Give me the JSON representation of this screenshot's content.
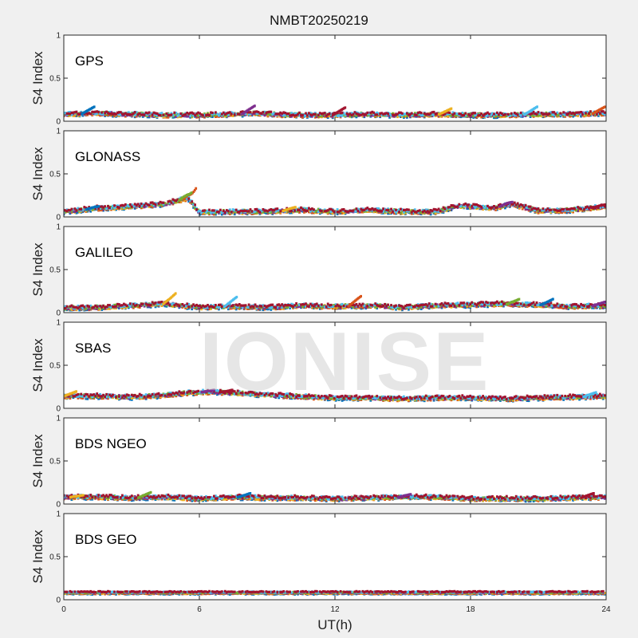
{
  "figure": {
    "title": "NMBT20250219",
    "watermark": "IONISE",
    "colors": {
      "background": "#f0f0f0",
      "axes_bg": "#ffffff",
      "axis": "#262626",
      "series": [
        "#0072bd",
        "#d95319",
        "#edb120",
        "#7e2f8e",
        "#77ac30",
        "#4dbeee",
        "#a2142f"
      ]
    }
  },
  "chart_data": [
    {
      "type": "scatter",
      "panel_label": "GPS",
      "ylabel": "S4 Index",
      "xlim": [
        0,
        24
      ],
      "ylim": [
        0,
        1
      ],
      "xticks": [
        0,
        6,
        12,
        18,
        24
      ],
      "yticks": [
        0,
        0.5,
        1
      ],
      "yticklabels": [
        "0",
        "0.5",
        "1"
      ],
      "show_xticklabels": false,
      "profile": {
        "x": [
          0,
          1.5,
          3,
          4.5,
          6,
          7.5,
          8.5,
          10,
          12,
          13.5,
          15,
          16.5,
          18,
          19.5,
          21,
          22.5,
          24
        ],
        "y": [
          0.08,
          0.09,
          0.08,
          0.07,
          0.07,
          0.08,
          0.09,
          0.07,
          0.07,
          0.08,
          0.07,
          0.08,
          0.07,
          0.07,
          0.08,
          0.08,
          0.09
        ]
      },
      "spikes": [
        [
          1.3,
          0.16
        ],
        [
          8.4,
          0.17
        ],
        [
          12.4,
          0.15
        ],
        [
          17.1,
          0.14
        ],
        [
          20.9,
          0.16
        ],
        [
          23.9,
          0.16
        ]
      ]
    },
    {
      "type": "scatter",
      "panel_label": "GLONASS",
      "ylabel": "S4 Index",
      "xlim": [
        0,
        24
      ],
      "ylim": [
        0,
        1
      ],
      "xticks": [
        0,
        6,
        12,
        18,
        24
      ],
      "yticks": [
        0,
        0.5,
        1
      ],
      "yticklabels": [
        "0",
        "0.5",
        "1"
      ],
      "show_xticklabels": false,
      "profile": {
        "x": [
          0,
          1.5,
          3,
          4.5,
          5.5,
          6,
          7.5,
          9,
          10.5,
          12,
          13.5,
          15,
          16.5,
          17.5,
          19,
          19.8,
          21,
          22.5,
          24
        ],
        "y": [
          0.06,
          0.1,
          0.12,
          0.15,
          0.22,
          0.05,
          0.06,
          0.06,
          0.08,
          0.06,
          0.08,
          0.06,
          0.06,
          0.13,
          0.1,
          0.15,
          0.07,
          0.08,
          0.12
        ]
      },
      "spikes": [
        [
          5.8,
          0.31
        ],
        [
          5.6,
          0.27
        ],
        [
          1.5,
          0.12
        ],
        [
          19.8,
          0.17
        ],
        [
          23.9,
          0.14
        ],
        [
          10.2,
          0.11
        ]
      ]
    },
    {
      "type": "scatter",
      "panel_label": "GALILEO",
      "ylabel": "S4 Index",
      "xlim": [
        0,
        24
      ],
      "ylim": [
        0,
        1
      ],
      "xticks": [
        0,
        6,
        12,
        18,
        24
      ],
      "yticks": [
        0,
        0.5,
        1
      ],
      "yticklabels": [
        "0",
        "0.5",
        "1"
      ],
      "show_xticklabels": false,
      "profile": {
        "x": [
          0,
          1.5,
          3,
          4.5,
          6,
          7.5,
          9,
          10.5,
          12,
          13.5,
          15,
          16.5,
          18,
          19.5,
          21,
          22.5,
          24
        ],
        "y": [
          0.05,
          0.06,
          0.08,
          0.1,
          0.06,
          0.07,
          0.06,
          0.08,
          0.07,
          0.08,
          0.06,
          0.08,
          0.09,
          0.1,
          0.09,
          0.07,
          0.08
        ]
      },
      "spikes": [
        [
          4.9,
          0.21
        ],
        [
          7.6,
          0.17
        ],
        [
          13.1,
          0.18
        ],
        [
          20.1,
          0.15
        ],
        [
          21.6,
          0.15
        ],
        [
          23.9,
          0.12
        ]
      ]
    },
    {
      "type": "scatter",
      "panel_label": "SBAS",
      "ylabel": "S4 Index",
      "xlim": [
        0,
        24
      ],
      "ylim": [
        0,
        1
      ],
      "xticks": [
        0,
        6,
        12,
        18,
        24
      ],
      "yticks": [
        0,
        0.5,
        1
      ],
      "yticklabels": [
        "0",
        "0.5",
        "1"
      ],
      "show_xticklabels": false,
      "profile": {
        "x": [
          0,
          1.5,
          3,
          4.5,
          5.5,
          6.5,
          8,
          9.5,
          11,
          12,
          13.5,
          15,
          16.5,
          18,
          19.5,
          21,
          22.5,
          24
        ],
        "y": [
          0.14,
          0.14,
          0.13,
          0.15,
          0.18,
          0.19,
          0.17,
          0.15,
          0.13,
          0.12,
          0.12,
          0.11,
          0.12,
          0.12,
          0.11,
          0.12,
          0.13,
          0.14
        ]
      },
      "spikes": [
        [
          6.6,
          0.21
        ],
        [
          7.4,
          0.21
        ],
        [
          0.5,
          0.19
        ],
        [
          23.5,
          0.18
        ]
      ]
    },
    {
      "type": "scatter",
      "panel_label": "BDS NGEO",
      "ylabel": "S4 Index",
      "xlim": [
        0,
        24
      ],
      "ylim": [
        0,
        1
      ],
      "xticks": [
        0,
        6,
        12,
        18,
        24
      ],
      "yticks": [
        0,
        0.5,
        1
      ],
      "yticklabels": [
        "0",
        "0.5",
        "1"
      ],
      "show_xticklabels": false,
      "profile": {
        "x": [
          0,
          1.5,
          3,
          4.5,
          6,
          7.5,
          9,
          10.5,
          12,
          13.5,
          15,
          16.5,
          18,
          19.5,
          21,
          22.5,
          24
        ],
        "y": [
          0.08,
          0.08,
          0.07,
          0.08,
          0.06,
          0.08,
          0.07,
          0.07,
          0.06,
          0.07,
          0.08,
          0.08,
          0.06,
          0.06,
          0.06,
          0.07,
          0.08
        ]
      },
      "spikes": [
        [
          3.8,
          0.13
        ],
        [
          8.2,
          0.12
        ],
        [
          15.3,
          0.11
        ],
        [
          23.4,
          0.12
        ],
        [
          0.8,
          0.1
        ]
      ]
    },
    {
      "type": "scatter",
      "panel_label": "BDS GEO",
      "ylabel": "S4 Index",
      "xlabel": "UT(h)",
      "xlim": [
        0,
        24
      ],
      "ylim": [
        0,
        1
      ],
      "xticks": [
        0,
        6,
        12,
        18,
        24
      ],
      "xticklabels": [
        "0",
        "6",
        "12",
        "18",
        "24"
      ],
      "yticks": [
        0,
        0.5,
        1
      ],
      "yticklabels": [
        "0",
        "0.5",
        "1"
      ],
      "show_xticklabels": true,
      "profile": {
        "x": [
          0,
          6,
          12,
          18,
          24
        ],
        "y": [
          0.08,
          0.08,
          0.08,
          0.08,
          0.08
        ]
      },
      "spikes": []
    }
  ]
}
